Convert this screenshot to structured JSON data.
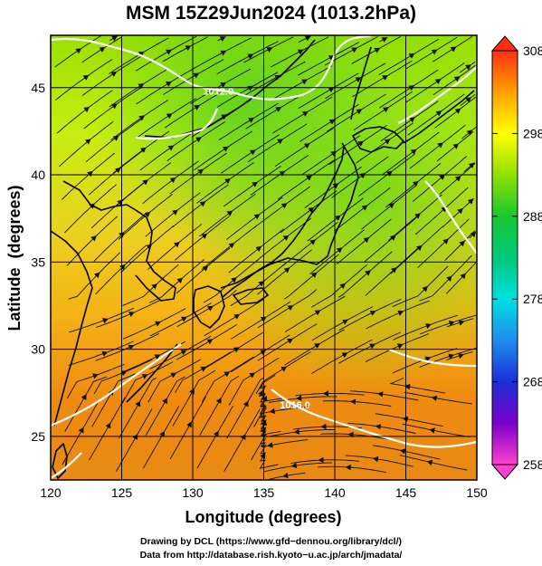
{
  "title": "MSM 15Z29Jun2024 (1013.2hPa)",
  "map": {
    "lon_range": [
      120,
      150
    ],
    "lat_range": [
      22.5,
      48
    ],
    "lon_ticks": [
      120,
      125,
      130,
      135,
      140,
      145,
      150
    ],
    "lat_ticks": [
      25,
      30,
      35,
      40,
      45
    ],
    "xlabel": "Longitude (degrees)",
    "ylabel": "Latitude  (degrees)",
    "grid": true,
    "contour_labels": [
      {
        "text": "1012.0",
        "lon": 131.8,
        "lat": 44.6
      },
      {
        "text": "1016.0",
        "lon": 137.2,
        "lat": 26.6
      }
    ]
  },
  "colorbar": {
    "ticks": [
      308,
      298,
      288,
      278,
      268,
      258
    ],
    "range": [
      258,
      308
    ],
    "colors": {
      "c258": "#ff40d0",
      "c263": "#7a00c8",
      "c268": "#1c2fd8",
      "c273": "#1f8bf0",
      "c278": "#00e0e0",
      "c283": "#00c878",
      "c288": "#18c830",
      "c293": "#90e000",
      "c298": "#ffff00",
      "c303": "#ffa000",
      "c308": "#ff3010"
    }
  },
  "credits": {
    "line1": "Drawing by DCL (https://www.gfd−dennou.org/library/dcl/)",
    "line2": "Data from http://database.rish.kyoto−u.ac.jp/arch/jmadata/"
  }
}
